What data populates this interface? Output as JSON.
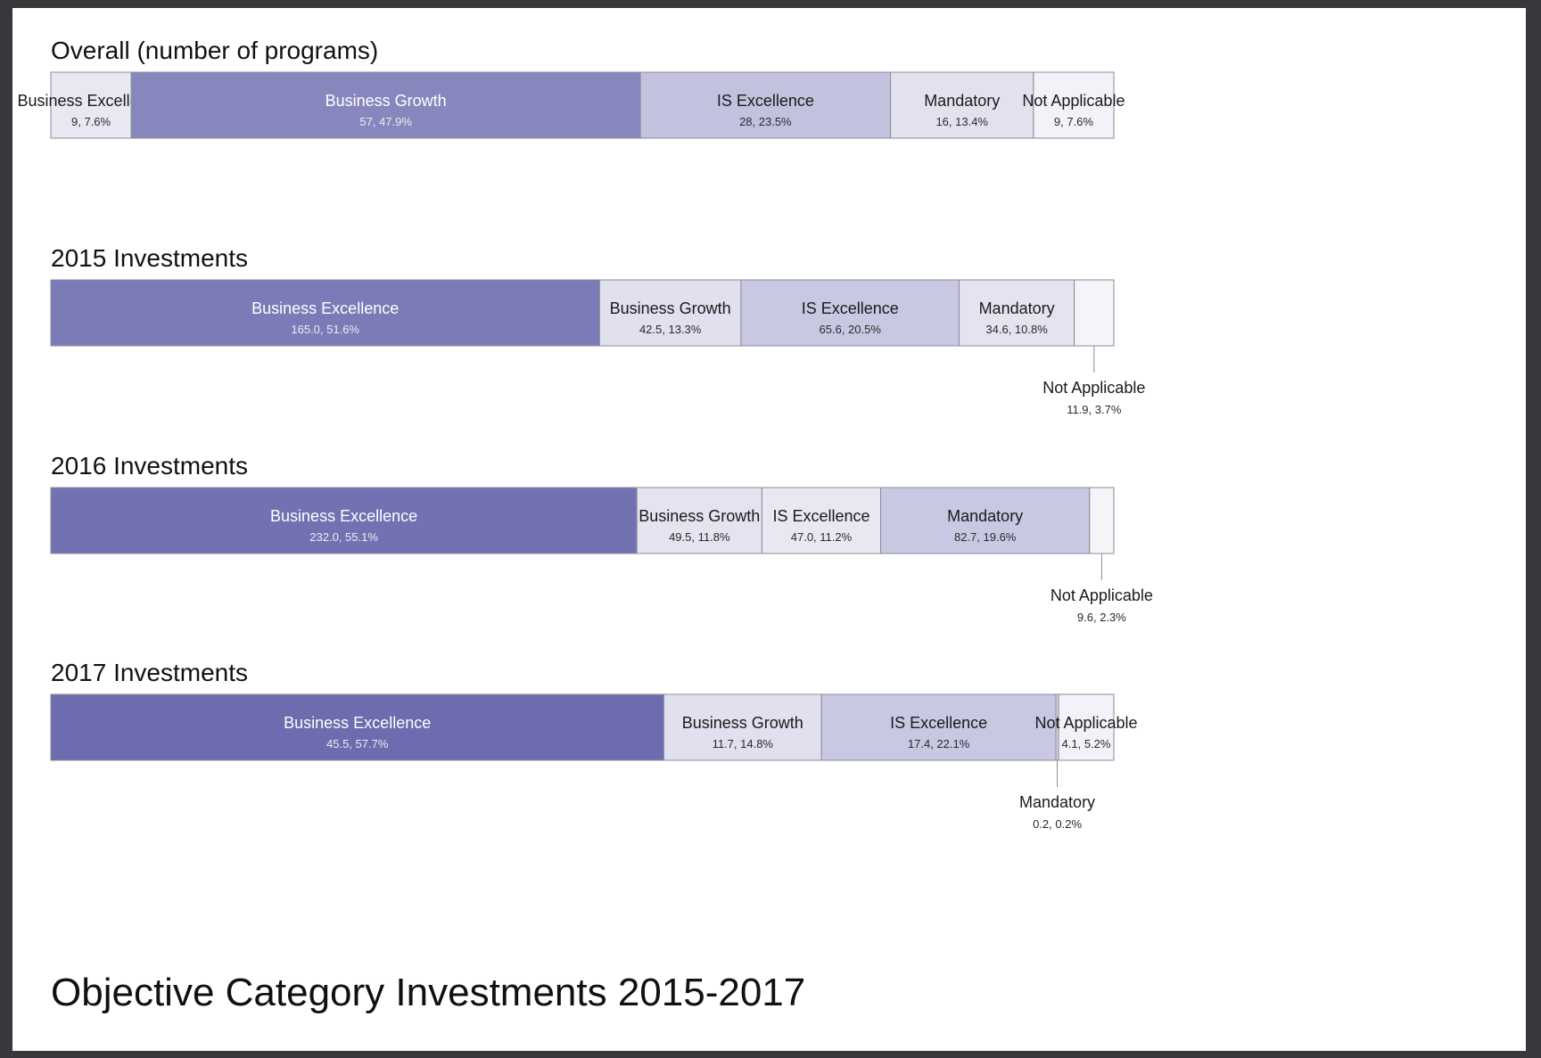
{
  "page_title": "Objective Category Investments 2015-2017",
  "colors": {
    "Business Excellence": "#7474b4",
    "Business Growth": "#dcdcec",
    "IS Excellence": "#c4c4e0",
    "Mandatory": "#e2e2ef",
    "Not Applicable": "#f2f2f8"
  },
  "chart_data": [
    {
      "type": "bar",
      "orientation": "horizontal-stacked-100",
      "title": "Overall (number of programs)",
      "categories": [
        "Business Excellence",
        "Business Growth",
        "IS Excellence",
        "Mandatory",
        "Not Applicable"
      ],
      "values": [
        9,
        57,
        28,
        16,
        9
      ],
      "value_labels": [
        "9",
        "57",
        "28",
        "16",
        "9"
      ],
      "percent_labels": [
        "7.6%",
        "47.9%",
        "23.5%",
        "13.4%",
        "7.6%"
      ],
      "fills": [
        "#e8e8f2",
        "#8787bd",
        "#c2c2df",
        "#e2e2ef",
        "#f2f2f8"
      ],
      "text_light": [
        false,
        true,
        false,
        false,
        false
      ],
      "leader_callouts": []
    },
    {
      "type": "bar",
      "orientation": "horizontal-stacked-100",
      "title": "2015 Investments",
      "categories": [
        "Business Excellence",
        "Business Growth",
        "IS Excellence",
        "Mandatory",
        "Not Applicable"
      ],
      "values": [
        165.0,
        42.5,
        65.6,
        34.6,
        11.9
      ],
      "value_labels": [
        "165.0",
        "42.5",
        "65.6",
        "34.6",
        "11.9"
      ],
      "percent_labels": [
        "51.6%",
        "13.3%",
        "20.5%",
        "10.8%",
        "3.7%"
      ],
      "fills": [
        "#7b7bb8",
        "#e0e0ee",
        "#c8c8e2",
        "#e4e4f0",
        "#f4f4f9"
      ],
      "text_light": [
        true,
        false,
        false,
        false,
        false
      ],
      "leader_callouts": [
        "Not Applicable"
      ]
    },
    {
      "type": "bar",
      "orientation": "horizontal-stacked-100",
      "title": "2016 Investments",
      "categories": [
        "Business Excellence",
        "Business Growth",
        "IS Excellence",
        "Mandatory",
        "Not Applicable"
      ],
      "values": [
        232.0,
        49.5,
        47.0,
        82.7,
        9.6
      ],
      "value_labels": [
        "232.0",
        "49.5",
        "47.0",
        "82.7",
        "9.6"
      ],
      "percent_labels": [
        "55.1%",
        "11.8%",
        "11.2%",
        "19.6%",
        "2.3%"
      ],
      "fills": [
        "#7272b2",
        "#e4e4f0",
        "#e8e8f2",
        "#c8c8e2",
        "#f4f4f9"
      ],
      "text_light": [
        true,
        false,
        false,
        false,
        false
      ],
      "leader_callouts": [
        "Not Applicable"
      ]
    },
    {
      "type": "bar",
      "orientation": "horizontal-stacked-100",
      "title": "2017 Investments",
      "categories": [
        "Business Excellence",
        "Business Growth",
        "IS Excellence",
        "Mandatory",
        "Not Applicable"
      ],
      "values": [
        45.5,
        11.7,
        17.4,
        0.2,
        4.1
      ],
      "value_labels": [
        "45.5",
        "11.7",
        "17.4",
        "0.2",
        "4.1"
      ],
      "percent_labels": [
        "57.7%",
        "14.8%",
        "22.1%",
        "0.2%",
        "5.2%"
      ],
      "fills": [
        "#6c6cae",
        "#e0e0ee",
        "#c8c8e2",
        "#d4d4e8",
        "#f2f2f8"
      ],
      "text_light": [
        true,
        false,
        false,
        false,
        false
      ],
      "leader_callouts": [
        "Mandatory"
      ]
    }
  ]
}
